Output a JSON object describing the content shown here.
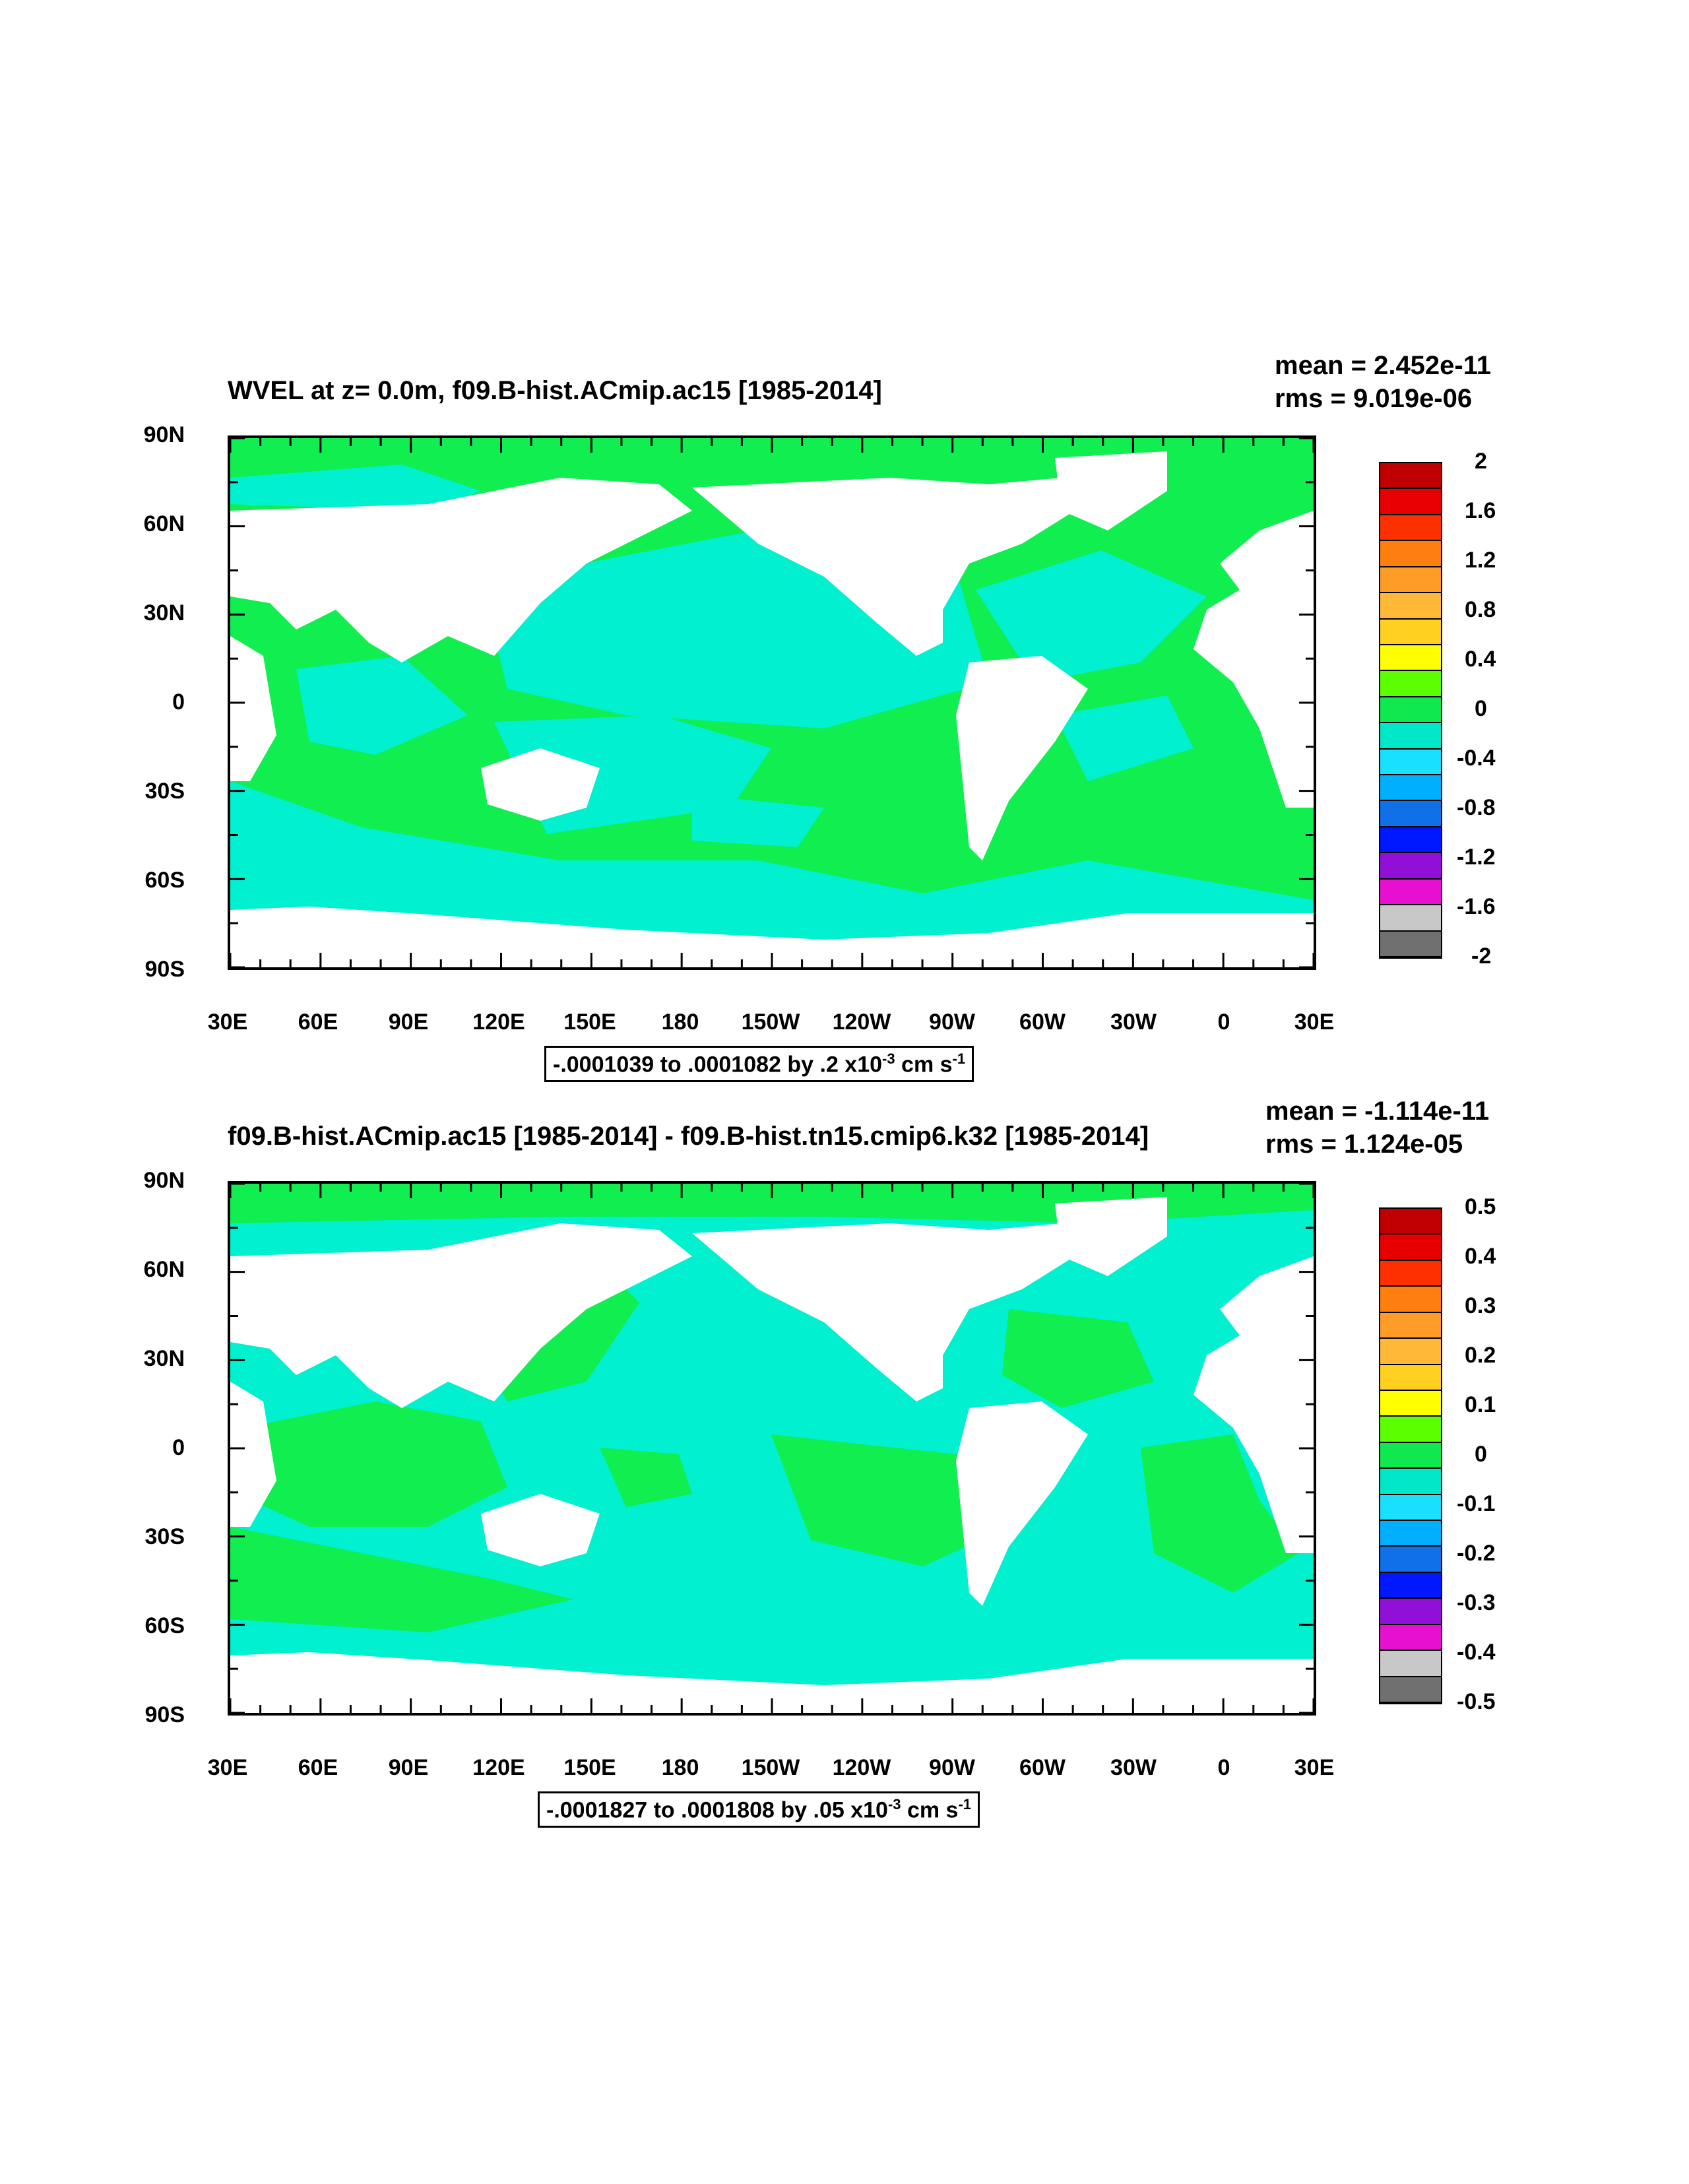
{
  "panels": [
    {
      "title": "WVEL at z=    0.0m, f09.B-hist.ACmip.ac15 [1985-2014]",
      "mean": "mean = 2.452e-11",
      "rms": "rms = 9.019e-06",
      "range_text": "-.0001039 to .0001082 by .2 x10",
      "range_exp": "-3",
      "range_unit": " cm s",
      "range_unit_exp": "-1",
      "lat_labels": [
        "90N",
        "60N",
        "30N",
        "0",
        "30S",
        "60S",
        "90S"
      ],
      "lon_labels": [
        "30E",
        "60E",
        "90E",
        "120E",
        "150E",
        "180",
        "150W",
        "120W",
        "90W",
        "60W",
        "30W",
        "0",
        "30E"
      ],
      "colorbar_labels": [
        "2",
        "1.6",
        "1.2",
        "0.8",
        "0.4",
        "0",
        "-0.4",
        "-0.8",
        "-1.2",
        "-1.6",
        "-2"
      ]
    },
    {
      "title": "f09.B-hist.ACmip.ac15 [1985-2014] - f09.B-hist.tn15.cmip6.k32 [1985-2014]",
      "mean": "mean = -1.114e-11",
      "rms": "rms = 1.124e-05",
      "range_text": "-.0001827 to .0001808 by .05 x10",
      "range_exp": "-3",
      "range_unit": " cm s",
      "range_unit_exp": "-1",
      "lat_labels": [
        "90N",
        "60N",
        "30N",
        "0",
        "30S",
        "60S",
        "90S"
      ],
      "lon_labels": [
        "30E",
        "60E",
        "90E",
        "120E",
        "150E",
        "180",
        "150W",
        "120W",
        "90W",
        "60W",
        "30W",
        "0",
        "30E"
      ],
      "colorbar_labels": [
        "0.5",
        "0.4",
        "0.3",
        "0.2",
        "0.1",
        "0",
        "-0.1",
        "-0.2",
        "-0.3",
        "-0.4",
        "-0.5"
      ]
    }
  ],
  "colorbar_colors": [
    "#c00000",
    "#e80000",
    "#ff3000",
    "#ff7e10",
    "#ff9c28",
    "#ffb838",
    "#ffd020",
    "#ffff00",
    "#5cff00",
    "#10e850",
    "#00e8c8",
    "#19e0ff",
    "#00b0ff",
    "#1070e8",
    "#0018ff",
    "#9010d8",
    "#e810d0",
    "#c8c8c8",
    "#707070"
  ],
  "colors": {
    "ocean_positive": "#10ee50",
    "ocean_negative": "#00f0d0",
    "land": "#ffffff"
  }
}
